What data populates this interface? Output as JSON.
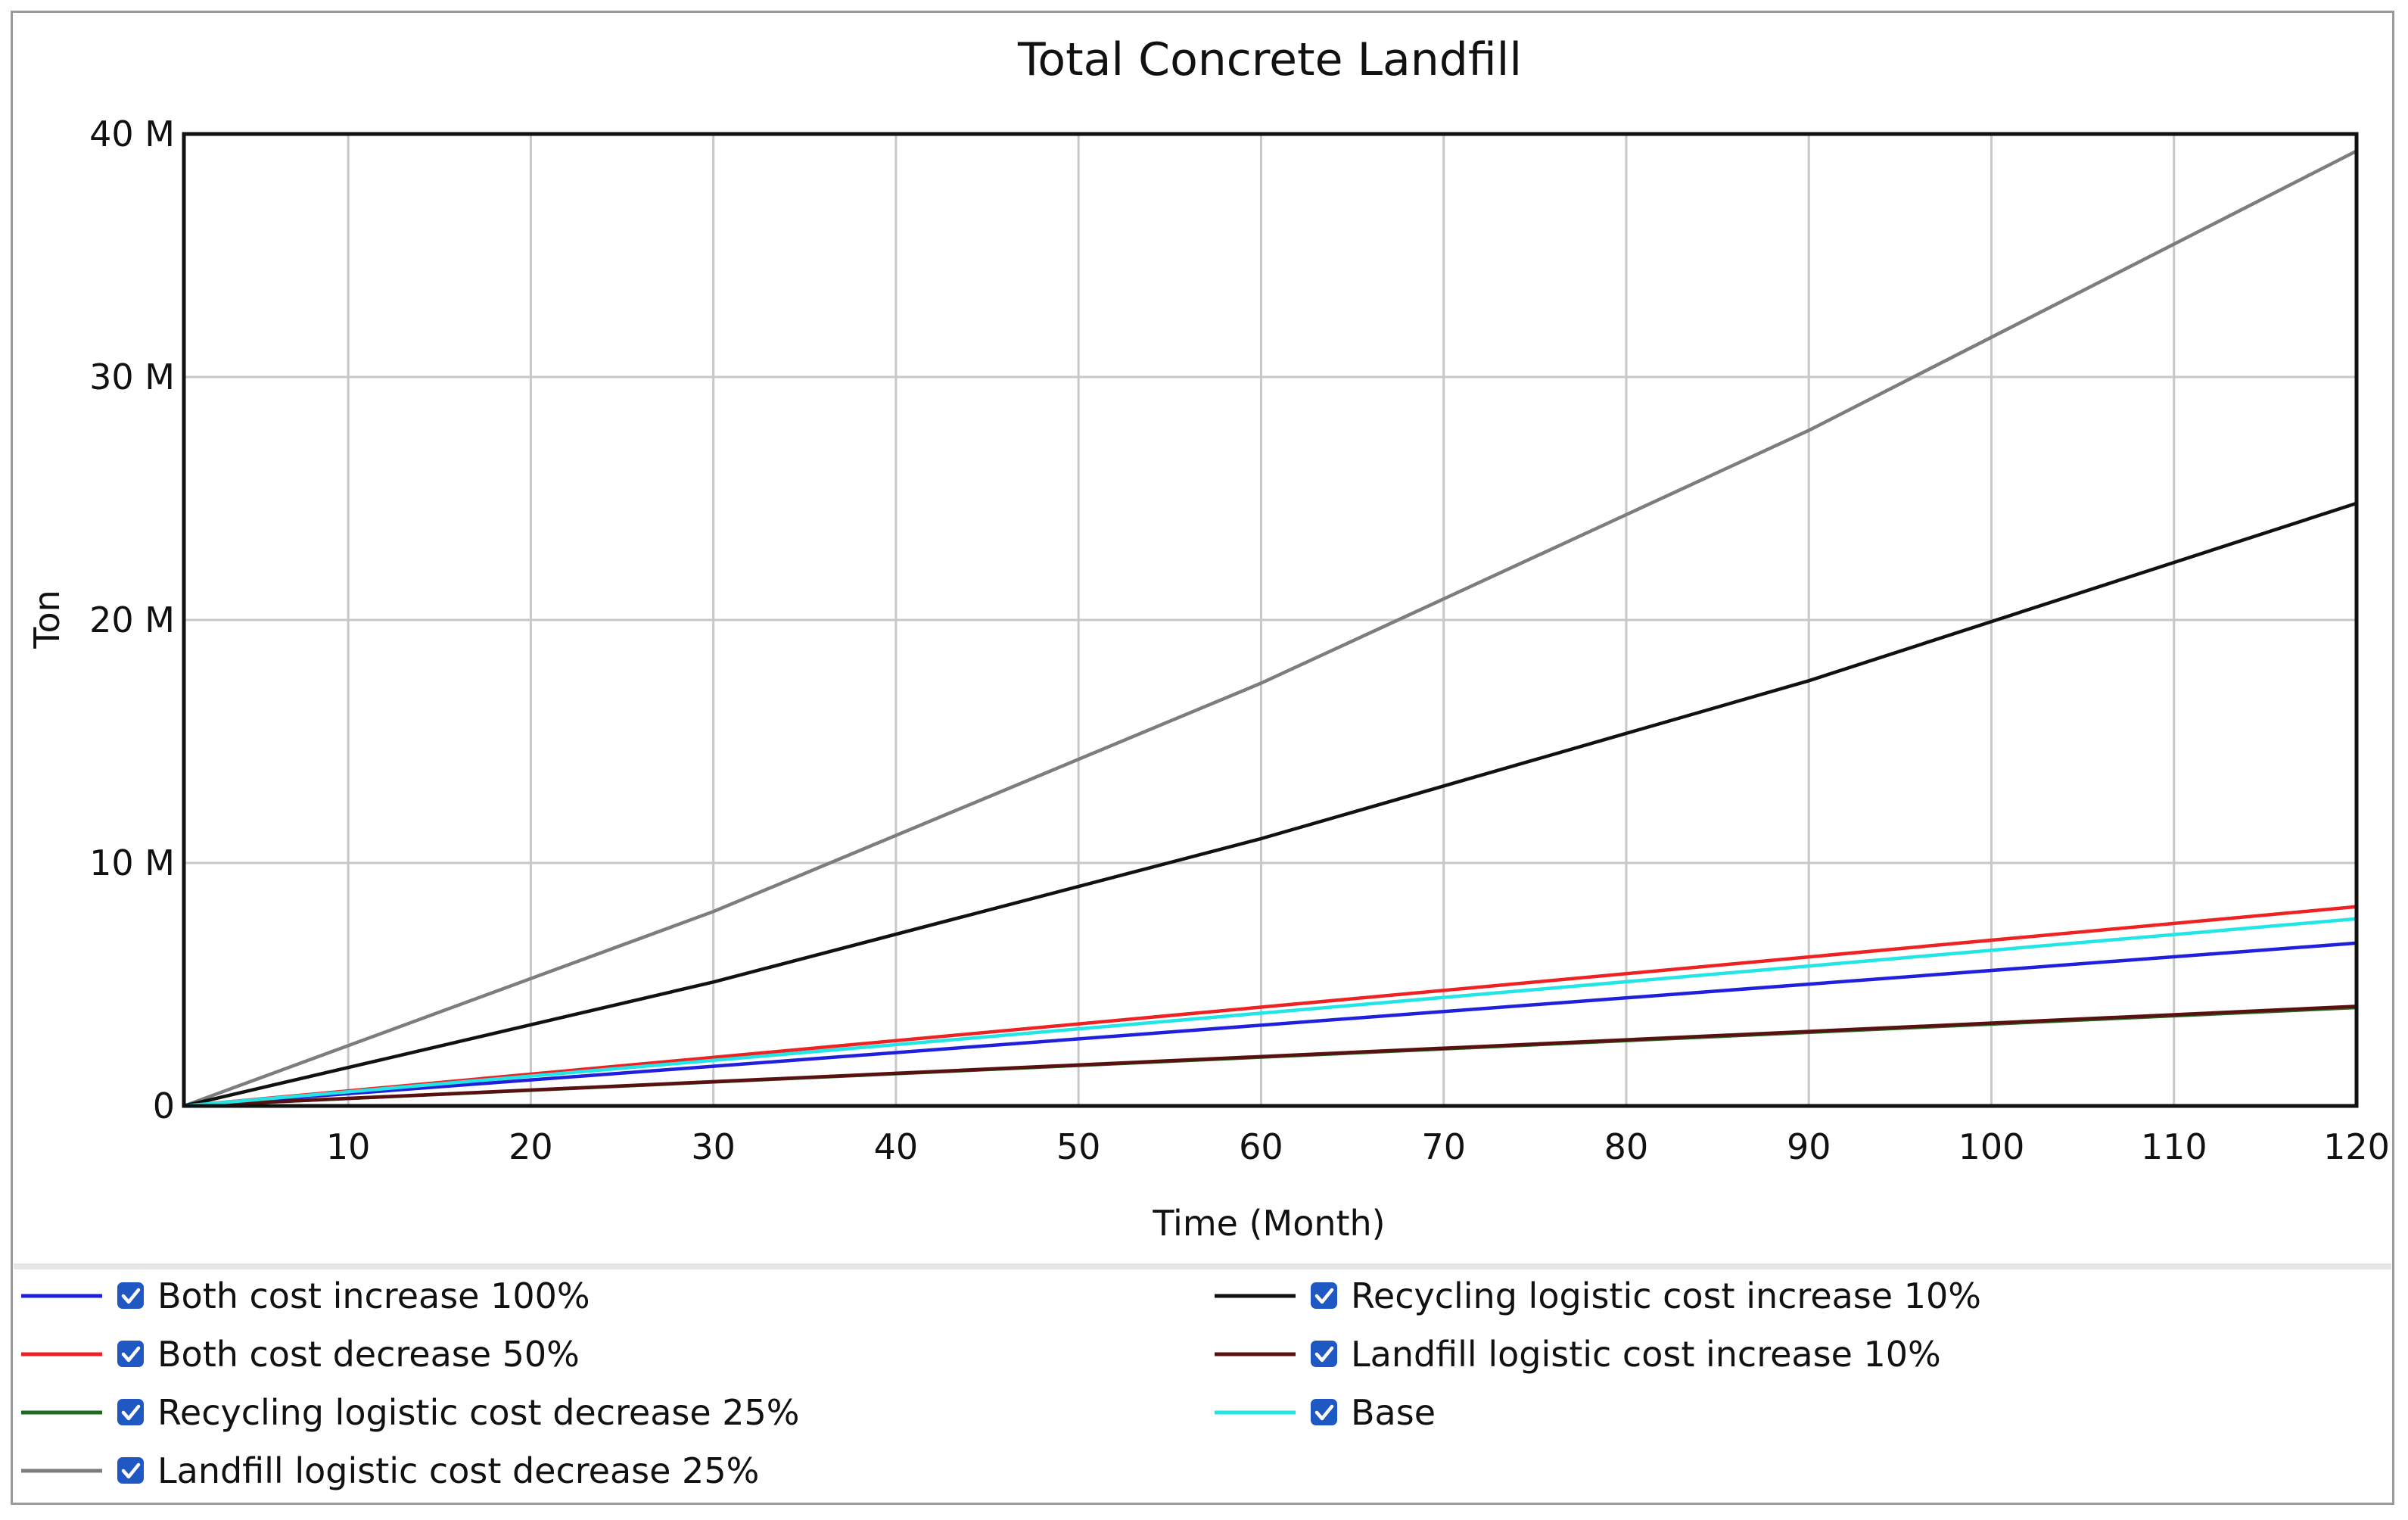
{
  "chart_data": {
    "type": "line",
    "title": "Total Concrete Landfill",
    "xlabel": "Time (Month)",
    "ylabel": "Ton",
    "xlim": [
      1,
      120
    ],
    "ylim": [
      0,
      40000000
    ],
    "grid": true,
    "x_ticks": [
      10,
      20,
      30,
      40,
      50,
      60,
      70,
      80,
      90,
      100,
      110,
      120
    ],
    "y_ticks": [
      {
        "value": 0,
        "label": "0"
      },
      {
        "value": 10000000,
        "label": "10 M"
      },
      {
        "value": 20000000,
        "label": "20 M"
      },
      {
        "value": 30000000,
        "label": "30 M"
      },
      {
        "value": 40000000,
        "label": "40 M"
      }
    ],
    "legend_position": "bottom",
    "series": [
      {
        "name": "Both cost increase 100%",
        "color": "#1f1fdc",
        "x": [
          1,
          120
        ],
        "values": [
          0,
          6700000
        ]
      },
      {
        "name": "Both cost decrease 50%",
        "color": "#ee2222",
        "x": [
          1,
          120
        ],
        "values": [
          0,
          8200000
        ]
      },
      {
        "name": "Recycling logistic cost decrease 25%",
        "color": "#1e6a1e",
        "x": [
          1,
          120
        ],
        "values": [
          0,
          4050000
        ]
      },
      {
        "name": "Landfill logistic cost decrease 25%",
        "color": "#7d7d7d",
        "x": [
          1,
          30,
          60,
          90,
          120
        ],
        "values": [
          0,
          8000000,
          17400000,
          27800000,
          39300000
        ]
      },
      {
        "name": "Recycling logistic cost increase 10%",
        "color": "#111111",
        "x": [
          1,
          30,
          60,
          90,
          120
        ],
        "values": [
          0,
          5100000,
          11000000,
          17500000,
          24800000
        ]
      },
      {
        "name": "Landfill logistic cost increase 10%",
        "color": "#5a1010",
        "x": [
          1,
          120
        ],
        "values": [
          0,
          4100000
        ]
      },
      {
        "name": "Base",
        "color": "#22e5e5",
        "x": [
          1,
          120
        ],
        "values": [
          0,
          7700000
        ]
      }
    ]
  }
}
